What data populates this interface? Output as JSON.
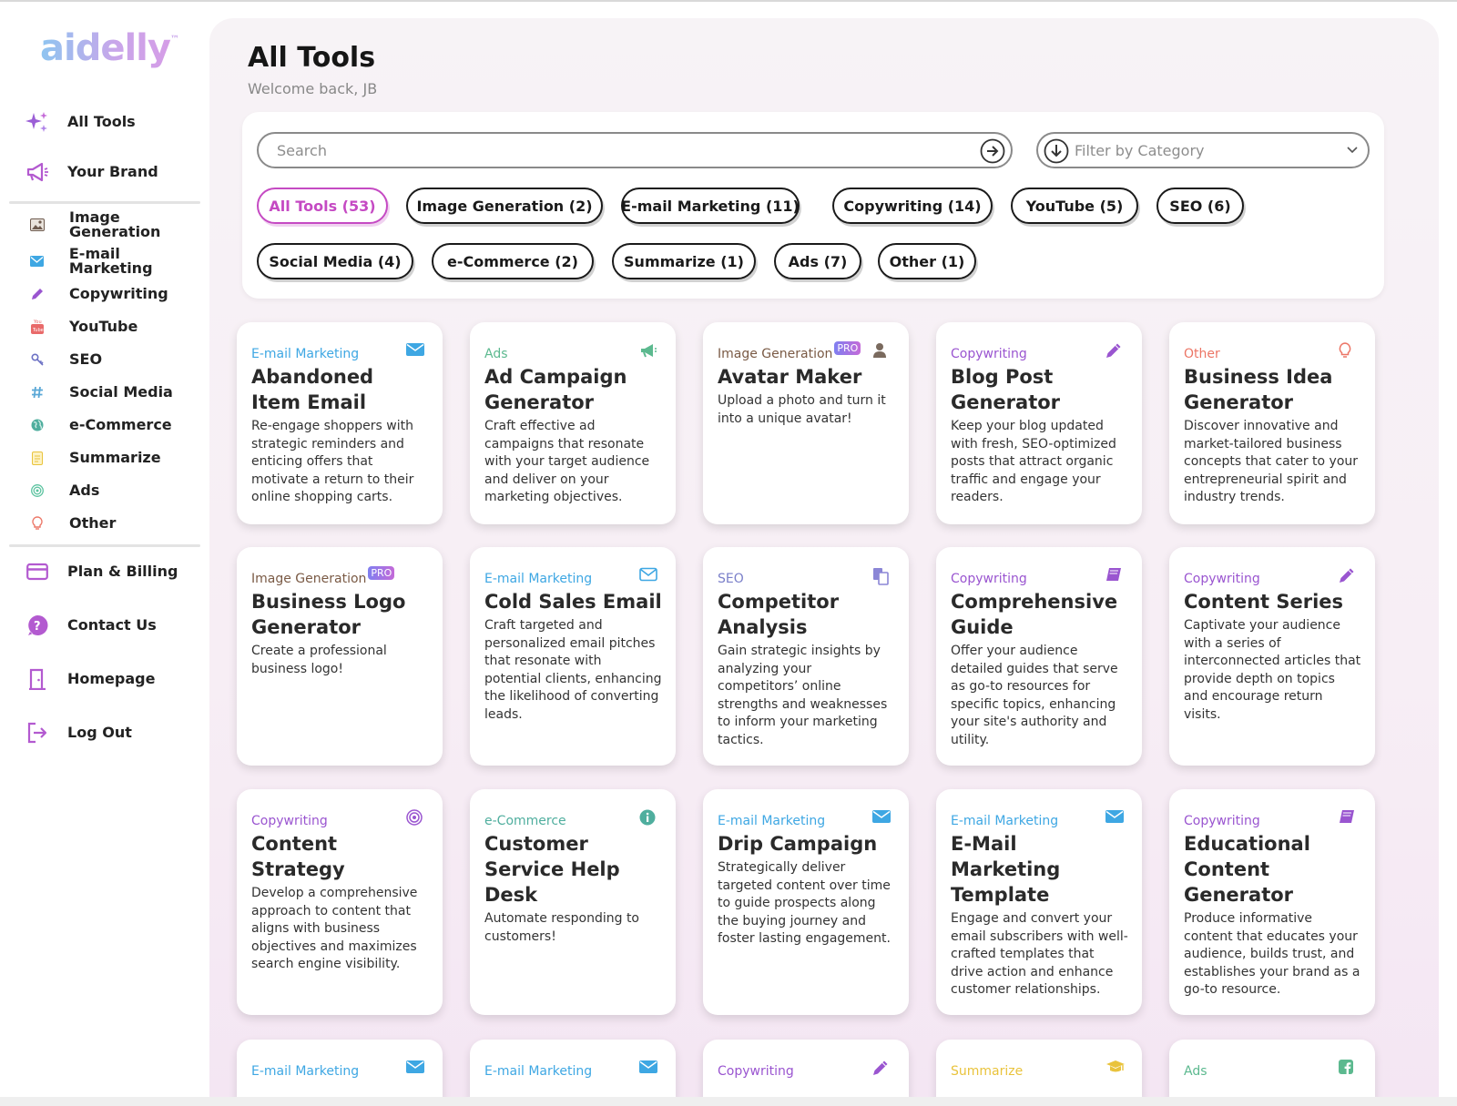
{
  "logo": "aidelly",
  "logo_mark": "™",
  "sidebar": {
    "items": [
      {
        "label": "All Tools",
        "icon": "sparkles-icon"
      },
      {
        "label": "Your Brand",
        "icon": "megaphone-icon"
      },
      {
        "label": "Image Generation",
        "icon": "image-icon"
      },
      {
        "label": "E-mail Marketing",
        "icon": "envelope-icon"
      },
      {
        "label": "Copywriting",
        "icon": "pencil-icon"
      },
      {
        "label": "YouTube",
        "icon": "youtube-icon"
      },
      {
        "label": "SEO",
        "icon": "key-icon"
      },
      {
        "label": "Social Media",
        "icon": "hashtag-icon"
      },
      {
        "label": "e-Commerce",
        "icon": "globe-icon"
      },
      {
        "label": "Summarize",
        "icon": "note-icon"
      },
      {
        "label": "Ads",
        "icon": "target-icon"
      },
      {
        "label": "Other",
        "icon": "lightbulb-icon"
      },
      {
        "label": "Plan & Billing",
        "icon": "credit-card-icon"
      },
      {
        "label": "Contact Us",
        "icon": "question-icon"
      },
      {
        "label": "Homepage",
        "icon": "door-icon"
      },
      {
        "label": "Log Out",
        "icon": "logout-icon"
      }
    ]
  },
  "header": {
    "title": "All Tools",
    "welcome": "Welcome back, JB"
  },
  "search": {
    "placeholder": "Search"
  },
  "filter": {
    "placeholder": "Filter by Category"
  },
  "chips": [
    {
      "label": "All Tools (53)",
      "active": true
    },
    {
      "label": "Image Generation (2)"
    },
    {
      "label": "E-mail Marketing (11)"
    },
    {
      "label": "Copywriting (14)"
    },
    {
      "label": "YouTube (5)"
    },
    {
      "label": "SEO (6)"
    },
    {
      "label": "Social Media (4)"
    },
    {
      "label": "e-Commerce (2)"
    },
    {
      "label": "Summarize (1)"
    },
    {
      "label": "Ads (7)"
    },
    {
      "label": "Other (1)"
    }
  ],
  "colors": {
    "email": "#3ea7e3",
    "ads": "#5cb98f",
    "image": "#7a5a45",
    "copywriting": "#9a55d0",
    "other": "#ec7565",
    "seo": "#7a7fc9",
    "ecommerce": "#4fae9e",
    "summarize": "#e9c33c",
    "accent": "#c54ac3",
    "pro_badge": "#9b77e6"
  },
  "cards": [
    {
      "category": "E-mail Marketing",
      "title": "Abandoned Item Email",
      "desc": "Re-engage shoppers with strategic reminders and enticing offers that motivate a return to their online shopping carts.",
      "icon": "envelope-icon"
    },
    {
      "category": "Ads",
      "title": "Ad Campaign Generator",
      "desc": "Craft effective ad campaigns that resonate with your target audience and deliver on your marketing objectives.",
      "icon": "megaphone-icon"
    },
    {
      "category": "Image Generation",
      "pro": "PRO",
      "title": "Avatar Maker",
      "desc": "Upload a photo and turn it into a unique avatar!",
      "icon": "user-icon"
    },
    {
      "category": "Copywriting",
      "title": "Blog Post Generator",
      "desc": "Keep your blog updated with fresh, SEO-optimized posts that attract organic traffic and engage your readers.",
      "icon": "pencil-icon"
    },
    {
      "category": "Other",
      "title": "Business Idea Generator",
      "desc": "Discover innovative and market-tailored business concepts that cater to your entrepreneurial spirit and industry trends.",
      "icon": "lightbulb-icon"
    },
    {
      "category": "Image Generation",
      "pro": "PRO",
      "title": "Business Logo Generator",
      "desc": "Create a professional business logo!",
      "icon": ""
    },
    {
      "category": "E-mail Marketing",
      "title": "Cold Sales Email",
      "desc": "Craft targeted and personalized email pitches that resonate with potential clients, enhancing the likelihood of converting leads.",
      "icon": "envelope-outline-icon"
    },
    {
      "category": "SEO",
      "title": "Competitor Analysis",
      "desc": "Gain strategic insights by analyzing your competitors’ online strengths and weaknesses to inform your marketing tactics.",
      "icon": "copy-icon"
    },
    {
      "category": "Copywriting",
      "title": "Comprehensive Guide",
      "desc": "Offer your audience detailed guides that serve as go-to resources for specific topics, enhancing your site's authority and utility.",
      "icon": "book-icon"
    },
    {
      "category": "Copywriting",
      "title": "Content Series",
      "desc": "Captivate your audience with a series of interconnected articles that provide depth on topics and encourage return visits.",
      "icon": "pencil-icon"
    },
    {
      "category": "Copywriting",
      "title": "Content Strategy",
      "desc": "Develop a comprehensive approach to content that aligns with business objectives and maximizes search engine visibility.",
      "icon": "target-icon"
    },
    {
      "category": "e-Commerce",
      "title": "Customer Service Help Desk",
      "desc": "Automate responding to customers!",
      "icon": "info-icon"
    },
    {
      "category": "E-mail Marketing",
      "title": "Drip Campaign",
      "desc": "Strategically deliver targeted content over time to guide prospects along the buying journey and foster lasting engagement.",
      "icon": "envelope-icon"
    },
    {
      "category": "E-mail Marketing",
      "title": "E-Mail Marketing Template",
      "desc": "Engage and convert your email subscribers with well-crafted templates that drive action and enhance customer relationships.",
      "icon": "envelope-icon"
    },
    {
      "category": "Copywriting",
      "title": "Educational Content Generator",
      "desc": "Produce informative content that educates your audience, builds trust, and establishes your brand as a go-to resource.",
      "icon": "book-icon"
    },
    {
      "category": "E-mail Marketing",
      "title": "",
      "desc": "",
      "icon": "envelope-icon"
    },
    {
      "category": "E-mail Marketing",
      "title": "",
      "desc": "",
      "icon": "envelope-icon"
    },
    {
      "category": "Copywriting",
      "title": "",
      "desc": "",
      "icon": "pencil-icon"
    },
    {
      "category": "Summarize",
      "title": "",
      "desc": "",
      "icon": "graduation-cap-icon"
    },
    {
      "category": "Ads",
      "title": "",
      "desc": "",
      "icon": "facebook-icon"
    }
  ]
}
